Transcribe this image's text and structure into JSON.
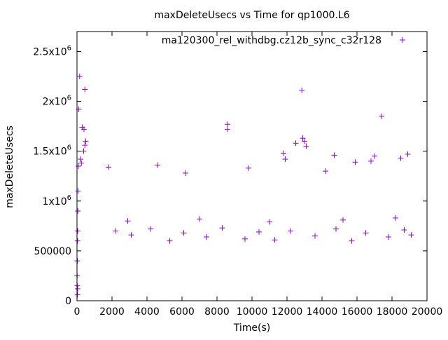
{
  "chart_data": {
    "type": "scatter",
    "title": "maxDeleteUsecs vs Time for qp1000.L6",
    "xlabel": "Time(s)",
    "ylabel": "maxDeleteUsecs",
    "xlim": [
      0,
      20000
    ],
    "ylim": [
      0,
      2700000
    ],
    "x_ticks": [
      {
        "value": 0,
        "label": "0"
      },
      {
        "value": 2000,
        "label": "2000"
      },
      {
        "value": 4000,
        "label": "4000"
      },
      {
        "value": 6000,
        "label": "6000"
      },
      {
        "value": 8000,
        "label": "8000"
      },
      {
        "value": 10000,
        "label": "10000"
      },
      {
        "value": 12000,
        "label": "12000"
      },
      {
        "value": 14000,
        "label": "14000"
      },
      {
        "value": 16000,
        "label": "16000"
      },
      {
        "value": 18000,
        "label": "18000"
      },
      {
        "value": 20000,
        "label": "20000"
      }
    ],
    "y_ticks": [
      {
        "value": 0,
        "base": "0",
        "exp": ""
      },
      {
        "value": 500000,
        "base": "500000",
        "exp": ""
      },
      {
        "value": 1000000,
        "base": "1x10",
        "exp": "6"
      },
      {
        "value": 1500000,
        "base": "1.5x10",
        "exp": "6"
      },
      {
        "value": 2000000,
        "base": "2x10",
        "exp": "6"
      },
      {
        "value": 2500000,
        "base": "2.5x10",
        "exp": "6"
      }
    ],
    "legend": {
      "placement": "top-right",
      "label": "ma120300_rel_withdbg.cz12b_sync_c32r128"
    },
    "marker": "+",
    "color": "#9400d3",
    "grid": false,
    "series": [
      {
        "name": "ma120300_rel_withdbg.cz12b_sync_c32r128",
        "points": [
          [
            150,
            2250000
          ],
          [
            450,
            2120000
          ],
          [
            100,
            1920000
          ],
          [
            300,
            1740000
          ],
          [
            400,
            1720000
          ],
          [
            500,
            1600000
          ],
          [
            450,
            1560000
          ],
          [
            380,
            1500000
          ],
          [
            200,
            1420000
          ],
          [
            250,
            1380000
          ],
          [
            80,
            1350000
          ],
          [
            60,
            1100000
          ],
          [
            50,
            900000
          ],
          [
            40,
            700000
          ],
          [
            30,
            600000
          ],
          [
            20,
            400000
          ],
          [
            10,
            250000
          ],
          [
            15,
            150000
          ],
          [
            25,
            60000
          ],
          [
            35,
            120000
          ],
          [
            8600,
            1770000
          ],
          [
            8600,
            1720000
          ],
          [
            12850,
            2110000
          ],
          [
            12900,
            1630000
          ],
          [
            13000,
            1600000
          ],
          [
            13100,
            1550000
          ],
          [
            12500,
            1580000
          ],
          [
            11800,
            1480000
          ],
          [
            11900,
            1420000
          ],
          [
            17400,
            1850000
          ],
          [
            17000,
            1450000
          ],
          [
            16800,
            1400000
          ],
          [
            14700,
            1460000
          ],
          [
            18500,
            1430000
          ],
          [
            18900,
            1470000
          ],
          [
            15900,
            1390000
          ],
          [
            4600,
            1360000
          ],
          [
            1800,
            1340000
          ],
          [
            9800,
            1330000
          ],
          [
            6200,
            1280000
          ],
          [
            14200,
            1300000
          ],
          [
            2200,
            700000
          ],
          [
            3100,
            660000
          ],
          [
            4200,
            720000
          ],
          [
            5300,
            600000
          ],
          [
            6100,
            680000
          ],
          [
            7400,
            640000
          ],
          [
            8300,
            730000
          ],
          [
            9600,
            620000
          ],
          [
            10400,
            690000
          ],
          [
            11300,
            610000
          ],
          [
            12200,
            700000
          ],
          [
            13600,
            650000
          ],
          [
            14800,
            720000
          ],
          [
            15700,
            600000
          ],
          [
            16500,
            680000
          ],
          [
            17800,
            640000
          ],
          [
            18700,
            710000
          ],
          [
            19100,
            660000
          ],
          [
            2900,
            800000
          ],
          [
            7000,
            820000
          ],
          [
            11000,
            790000
          ],
          [
            15200,
            810000
          ],
          [
            18200,
            830000
          ]
        ]
      }
    ]
  }
}
